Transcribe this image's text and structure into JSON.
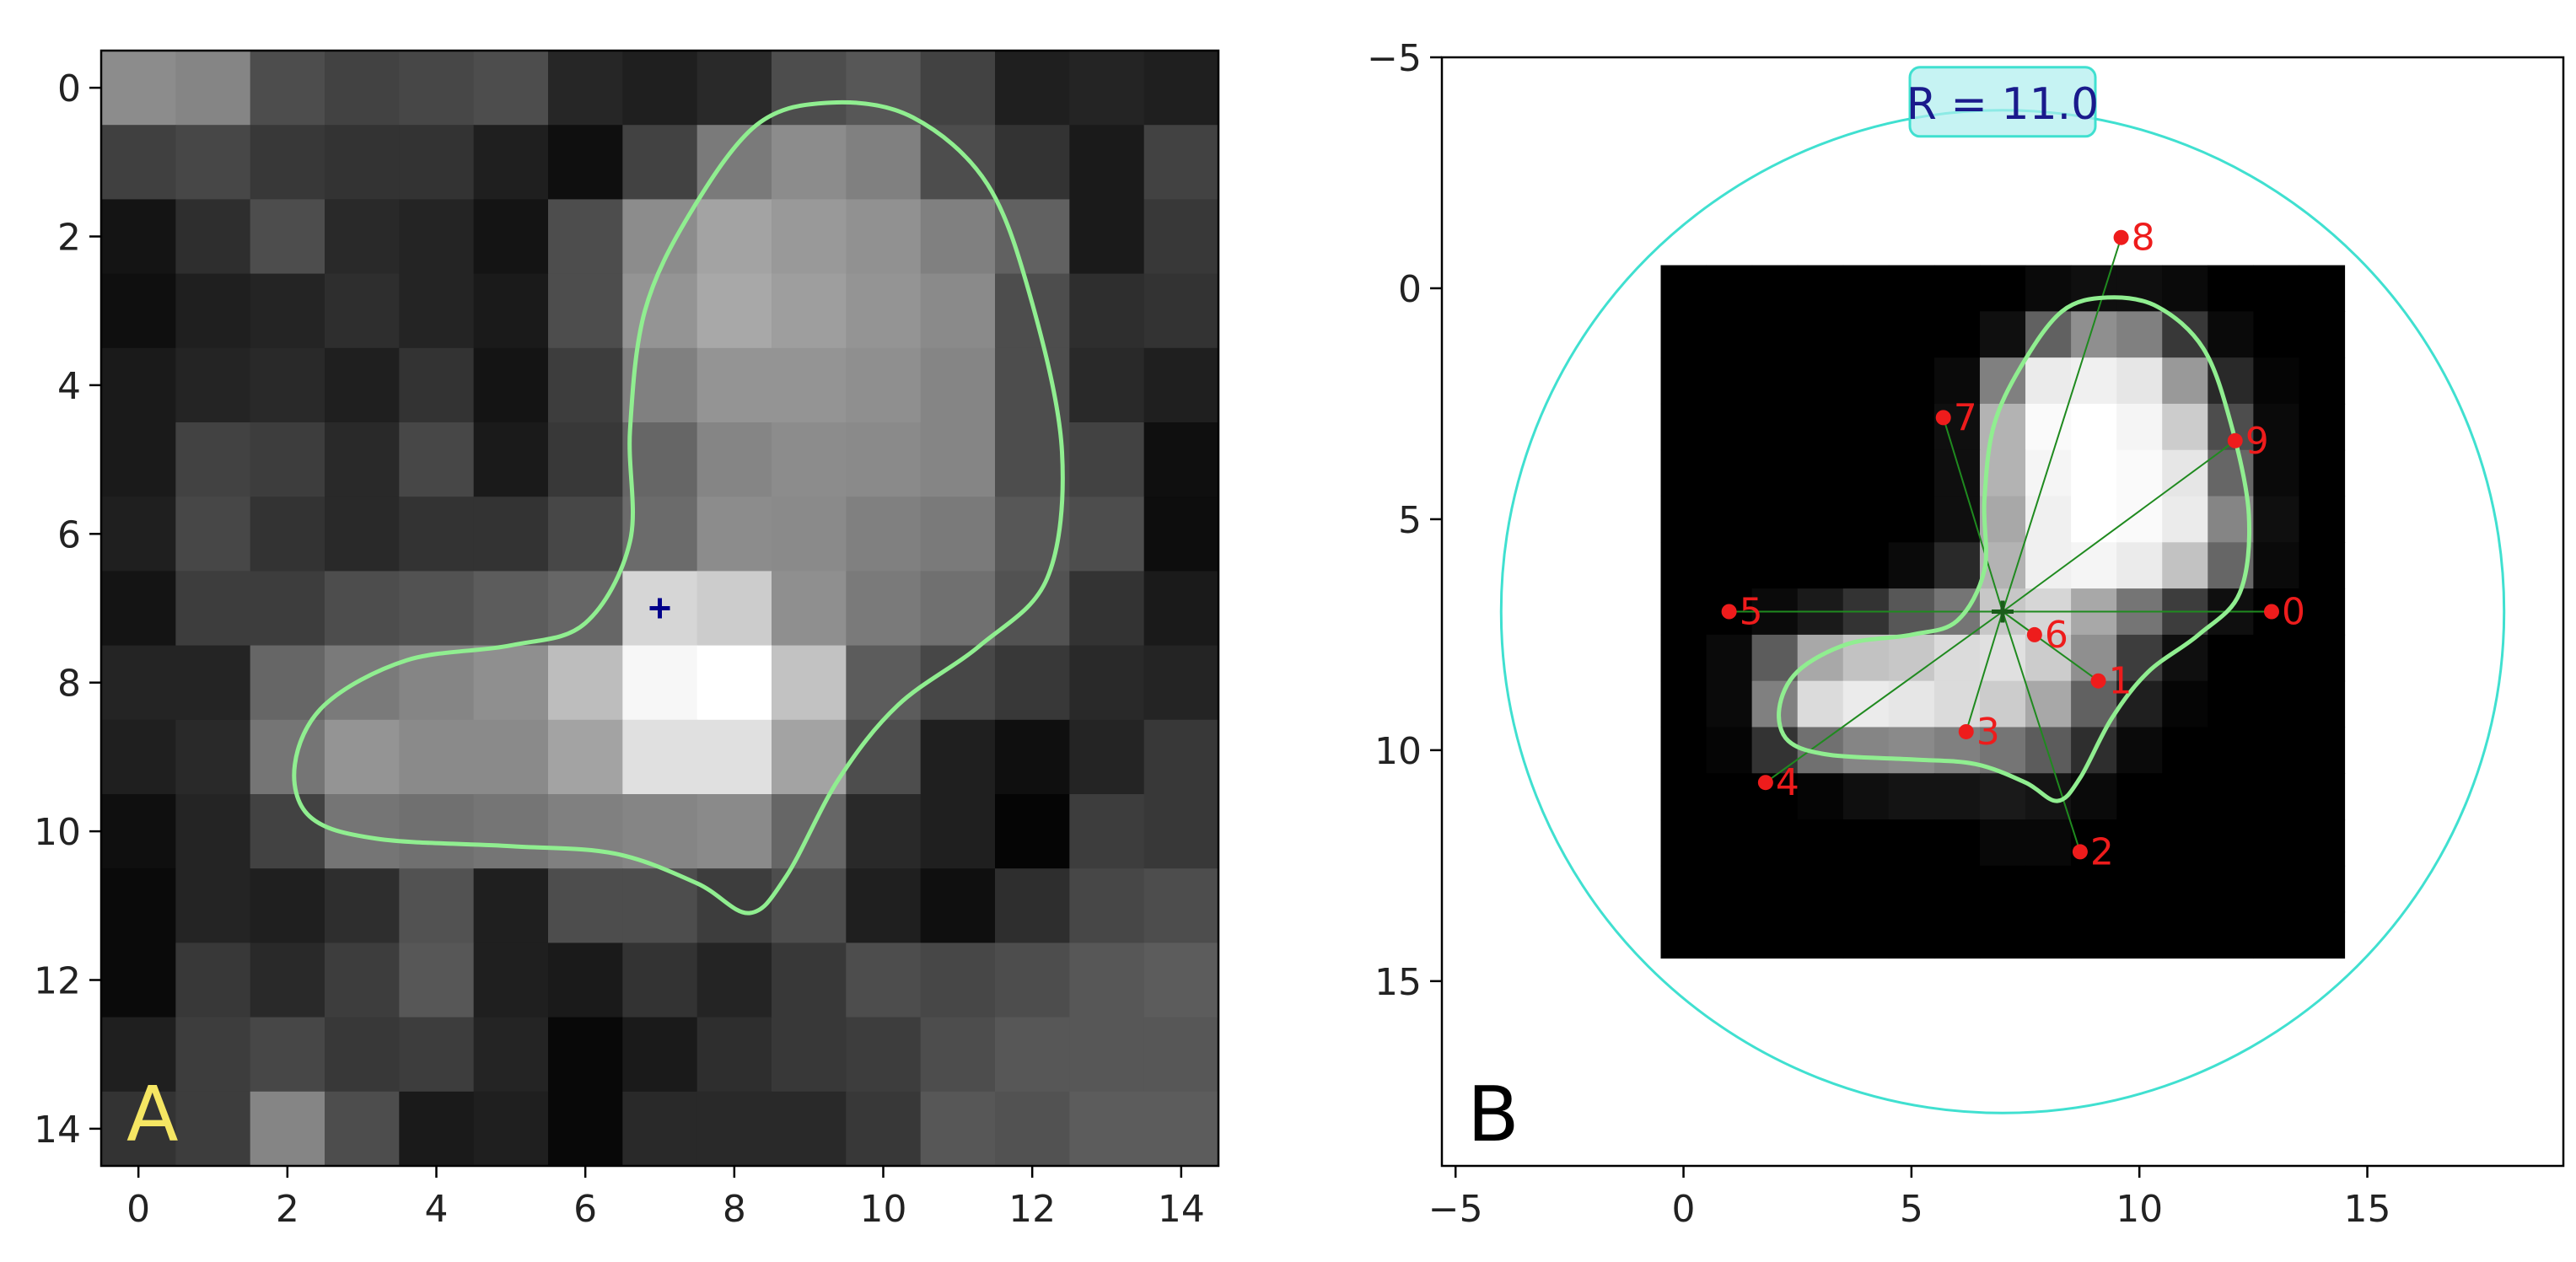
{
  "chart_data": [
    {
      "panel_label": "A",
      "type": "heatmap",
      "colormap": "gray",
      "xlim": [
        -0.5,
        14.5
      ],
      "ylim": [
        14.5,
        -0.5
      ],
      "x_ticks": [
        0,
        2,
        4,
        6,
        8,
        10,
        12,
        14
      ],
      "y_ticks": [
        0,
        2,
        4,
        6,
        8,
        10,
        12,
        14
      ],
      "x_tick_labels": [
        "0",
        "2",
        "4",
        "6",
        "8",
        "10",
        "12",
        "14"
      ],
      "y_tick_labels": [
        "0",
        "2",
        "4",
        "6",
        "8",
        "10",
        "12",
        "14"
      ],
      "grid": false,
      "intensity_rows": [
        [
          0.55,
          0.52,
          0.3,
          0.26,
          0.28,
          0.3,
          0.15,
          0.12,
          0.16,
          0.3,
          0.34,
          0.26,
          0.12,
          0.14,
          0.12
        ],
        [
          0.25,
          0.28,
          0.22,
          0.2,
          0.2,
          0.12,
          0.06,
          0.26,
          0.48,
          0.55,
          0.5,
          0.3,
          0.2,
          0.1,
          0.26
        ],
        [
          0.08,
          0.18,
          0.3,
          0.16,
          0.14,
          0.08,
          0.3,
          0.55,
          0.64,
          0.6,
          0.57,
          0.5,
          0.38,
          0.1,
          0.22
        ],
        [
          0.06,
          0.12,
          0.14,
          0.18,
          0.14,
          0.1,
          0.3,
          0.58,
          0.66,
          0.62,
          0.58,
          0.54,
          0.3,
          0.18,
          0.2
        ],
        [
          0.1,
          0.14,
          0.16,
          0.12,
          0.2,
          0.08,
          0.24,
          0.5,
          0.58,
          0.58,
          0.56,
          0.52,
          0.3,
          0.16,
          0.12
        ],
        [
          0.1,
          0.26,
          0.24,
          0.16,
          0.28,
          0.1,
          0.22,
          0.4,
          0.52,
          0.55,
          0.54,
          0.52,
          0.3,
          0.26,
          0.06
        ],
        [
          0.12,
          0.28,
          0.2,
          0.16,
          0.2,
          0.2,
          0.28,
          0.42,
          0.55,
          0.54,
          0.5,
          0.48,
          0.34,
          0.3,
          0.05
        ],
        [
          0.08,
          0.24,
          0.24,
          0.3,
          0.32,
          0.36,
          0.4,
          0.84,
          0.8,
          0.56,
          0.48,
          0.44,
          0.32,
          0.2,
          0.1
        ],
        [
          0.14,
          0.14,
          0.4,
          0.48,
          0.52,
          0.56,
          0.74,
          0.97,
          1.0,
          0.76,
          0.36,
          0.28,
          0.22,
          0.16,
          0.14
        ],
        [
          0.12,
          0.16,
          0.46,
          0.58,
          0.54,
          0.54,
          0.64,
          0.88,
          0.88,
          0.64,
          0.3,
          0.12,
          0.06,
          0.14,
          0.22
        ],
        [
          0.06,
          0.14,
          0.26,
          0.46,
          0.44,
          0.46,
          0.5,
          0.52,
          0.54,
          0.4,
          0.16,
          0.12,
          0.02,
          0.24,
          0.22
        ],
        [
          0.04,
          0.14,
          0.12,
          0.18,
          0.32,
          0.12,
          0.3,
          0.3,
          0.24,
          0.3,
          0.12,
          0.06,
          0.18,
          0.28,
          0.3
        ],
        [
          0.04,
          0.22,
          0.16,
          0.24,
          0.34,
          0.12,
          0.1,
          0.2,
          0.14,
          0.22,
          0.3,
          0.28,
          0.3,
          0.34,
          0.36
        ],
        [
          0.12,
          0.24,
          0.28,
          0.22,
          0.24,
          0.14,
          0.03,
          0.1,
          0.18,
          0.22,
          0.24,
          0.3,
          0.34,
          0.34,
          0.34
        ],
        [
          0.2,
          0.24,
          0.52,
          0.3,
          0.1,
          0.12,
          0.03,
          0.16,
          0.16,
          0.16,
          0.22,
          0.34,
          0.32,
          0.36,
          0.36
        ]
      ],
      "contour": {
        "color": "#90ee90",
        "points": [
          [
            9.3,
            0.2
          ],
          [
            10.4,
            0.4
          ],
          [
            11.4,
            1.3
          ],
          [
            12.0,
            2.9
          ],
          [
            12.4,
            4.9
          ],
          [
            12.2,
            6.6
          ],
          [
            11.3,
            7.5
          ],
          [
            10.2,
            8.3
          ],
          [
            9.4,
            9.3
          ],
          [
            8.7,
            10.6
          ],
          [
            8.2,
            11.1
          ],
          [
            7.5,
            10.7
          ],
          [
            6.4,
            10.3
          ],
          [
            5.0,
            10.2
          ],
          [
            3.2,
            10.1
          ],
          [
            2.3,
            9.8
          ],
          [
            2.1,
            9.1
          ],
          [
            2.5,
            8.3
          ],
          [
            3.6,
            7.7
          ],
          [
            5.0,
            7.5
          ],
          [
            6.0,
            7.2
          ],
          [
            6.6,
            6.1
          ],
          [
            6.6,
            4.6
          ],
          [
            6.8,
            3.0
          ],
          [
            7.4,
            1.7
          ],
          [
            8.3,
            0.5
          ]
        ]
      },
      "center_marker": {
        "x": 7.0,
        "y": 7.0,
        "symbol": "+",
        "color": "#00008b"
      }
    },
    {
      "panel_label": "B",
      "type": "scatter",
      "xlim": [
        -5.3,
        19.3
      ],
      "ylim": [
        19.0,
        -5.0
      ],
      "x_ticks": [
        -5,
        0,
        5,
        10,
        15
      ],
      "y_ticks": [
        -5,
        0,
        5,
        10,
        15
      ],
      "x_tick_labels": [
        "−5",
        "0",
        "5",
        "10",
        "15"
      ],
      "y_tick_labels": [
        "−5",
        "0",
        "5",
        "10",
        "15"
      ],
      "grid": false,
      "image_extent": [
        -0.5,
        14.5,
        14.5,
        -0.5
      ],
      "intensity_rows": [
        [
          0.0,
          0.0,
          0.0,
          0.0,
          0.0,
          0.0,
          0.0,
          0.0,
          0.04,
          0.06,
          0.06,
          0.04,
          0.0,
          0.0,
          0.0
        ],
        [
          0.0,
          0.0,
          0.0,
          0.0,
          0.0,
          0.0,
          0.0,
          0.06,
          0.38,
          0.56,
          0.5,
          0.22,
          0.04,
          0.0,
          0.0
        ],
        [
          0.0,
          0.0,
          0.0,
          0.0,
          0.0,
          0.0,
          0.04,
          0.5,
          0.92,
          0.94,
          0.9,
          0.6,
          0.16,
          0.02,
          0.0
        ],
        [
          0.0,
          0.0,
          0.0,
          0.0,
          0.0,
          0.0,
          0.06,
          0.7,
          0.98,
          1.0,
          0.96,
          0.8,
          0.3,
          0.04,
          0.0
        ],
        [
          0.0,
          0.0,
          0.0,
          0.0,
          0.0,
          0.0,
          0.06,
          0.7,
          0.96,
          1.0,
          0.98,
          0.9,
          0.4,
          0.04,
          0.0
        ],
        [
          0.0,
          0.0,
          0.0,
          0.0,
          0.0,
          0.0,
          0.06,
          0.66,
          0.94,
          1.0,
          0.98,
          0.92,
          0.52,
          0.06,
          0.0
        ],
        [
          0.0,
          0.0,
          0.0,
          0.0,
          0.0,
          0.04,
          0.16,
          0.7,
          0.94,
          0.96,
          0.92,
          0.76,
          0.4,
          0.04,
          0.0
        ],
        [
          0.0,
          0.0,
          0.04,
          0.1,
          0.2,
          0.34,
          0.46,
          0.78,
          0.84,
          0.66,
          0.46,
          0.24,
          0.06,
          0.0,
          0.0
        ],
        [
          0.0,
          0.04,
          0.36,
          0.66,
          0.76,
          0.78,
          0.86,
          0.88,
          0.8,
          0.56,
          0.24,
          0.06,
          0.0,
          0.0,
          0.0
        ],
        [
          0.0,
          0.04,
          0.5,
          0.86,
          0.92,
          0.9,
          0.86,
          0.8,
          0.66,
          0.38,
          0.12,
          0.02,
          0.0,
          0.0,
          0.0
        ],
        [
          0.0,
          0.02,
          0.2,
          0.44,
          0.52,
          0.54,
          0.5,
          0.46,
          0.36,
          0.18,
          0.04,
          0.0,
          0.0,
          0.0,
          0.0
        ],
        [
          0.0,
          0.0,
          0.0,
          0.02,
          0.06,
          0.08,
          0.08,
          0.1,
          0.08,
          0.04,
          0.0,
          0.0,
          0.0,
          0.0,
          0.0
        ],
        [
          0.0,
          0.0,
          0.0,
          0.0,
          0.0,
          0.0,
          0.0,
          0.03,
          0.03,
          0.0,
          0.0,
          0.0,
          0.0,
          0.0,
          0.0
        ],
        [
          0.0,
          0.0,
          0.0,
          0.0,
          0.0,
          0.0,
          0.0,
          0.0,
          0.0,
          0.0,
          0.0,
          0.0,
          0.0,
          0.0,
          0.0
        ],
        [
          0.0,
          0.0,
          0.0,
          0.0,
          0.0,
          0.0,
          0.0,
          0.0,
          0.0,
          0.0,
          0.0,
          0.0,
          0.0,
          0.0,
          0.0
        ]
      ],
      "contour": {
        "color": "#90ee90",
        "points": [
          [
            9.3,
            0.2
          ],
          [
            10.4,
            0.4
          ],
          [
            11.4,
            1.3
          ],
          [
            12.0,
            2.9
          ],
          [
            12.4,
            4.9
          ],
          [
            12.2,
            6.6
          ],
          [
            11.3,
            7.5
          ],
          [
            10.2,
            8.3
          ],
          [
            9.4,
            9.3
          ],
          [
            8.7,
            10.6
          ],
          [
            8.2,
            11.1
          ],
          [
            7.5,
            10.7
          ],
          [
            6.4,
            10.3
          ],
          [
            5.0,
            10.2
          ],
          [
            3.2,
            10.1
          ],
          [
            2.3,
            9.8
          ],
          [
            2.1,
            9.1
          ],
          [
            2.5,
            8.3
          ],
          [
            3.6,
            7.7
          ],
          [
            5.0,
            7.5
          ],
          [
            6.0,
            7.2
          ],
          [
            6.6,
            6.1
          ],
          [
            6.6,
            4.6
          ],
          [
            6.8,
            3.0
          ],
          [
            7.4,
            1.7
          ],
          [
            8.3,
            0.5
          ]
        ]
      },
      "circle": {
        "cx": 7.0,
        "cy": 7.0,
        "r": 11.0,
        "color": "#40e0d0"
      },
      "radius_label": "R = 11.0",
      "radius_label_box_color": "#aeeeee",
      "center": {
        "x": 7.0,
        "y": 7.0,
        "symbol": "+",
        "color": "#1a5c1a"
      },
      "ray_color": "#1f8a1f",
      "point_color": "#ee1c1c",
      "points": [
        {
          "label": "0",
          "x": 12.9,
          "y": 7.0
        },
        {
          "label": "1",
          "x": 9.1,
          "y": 8.5
        },
        {
          "label": "2",
          "x": 8.7,
          "y": 12.2
        },
        {
          "label": "3",
          "x": 6.2,
          "y": 9.6
        },
        {
          "label": "4",
          "x": 1.8,
          "y": 10.7
        },
        {
          "label": "5",
          "x": 1.0,
          "y": 7.0
        },
        {
          "label": "6",
          "x": 7.7,
          "y": 7.5
        },
        {
          "label": "7",
          "x": 5.7,
          "y": 2.8
        },
        {
          "label": "8",
          "x": 9.6,
          "y": -1.1
        },
        {
          "label": "9",
          "x": 12.1,
          "y": 3.3
        }
      ]
    }
  ]
}
